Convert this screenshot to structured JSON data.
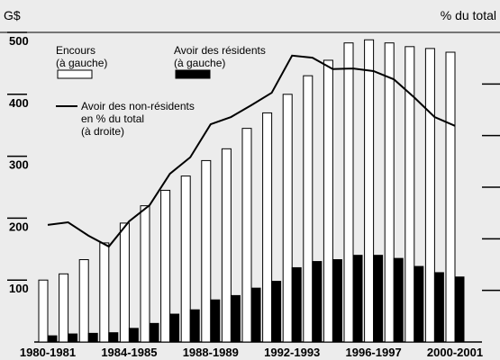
{
  "chart_data": {
    "type": "bar",
    "y_label": "G$",
    "y2_label": "% du total",
    "categories": [
      "1980-1981",
      null,
      null,
      null,
      "1984-1985",
      null,
      null,
      null,
      "1988-1989",
      null,
      null,
      null,
      "1992-1993",
      null,
      null,
      null,
      "1996-1997",
      null,
      null,
      null,
      "2000-2001"
    ],
    "series": [
      {
        "name": [
          "Encours",
          "(à gauche)"
        ],
        "color": "#ffffff",
        "values": [
          100,
          110,
          133,
          160,
          192,
          220,
          245,
          268,
          293,
          312,
          345,
          370,
          400,
          430,
          455,
          483,
          488,
          483,
          477,
          474,
          468
        ]
      },
      {
        "name": [
          "Avoir des résidents",
          "(à gauche)"
        ],
        "color": "#000000",
        "values": [
          10,
          13,
          14,
          15,
          22,
          30,
          45,
          52,
          68,
          75,
          87,
          98,
          120,
          130,
          133,
          140,
          140,
          135,
          122,
          112,
          105
        ]
      },
      {
        "name": [
          "Avoir des non-résidents",
          "en % du total",
          "(à droite)"
        ],
        "color": "#000000",
        "type": "line",
        "axis": "y2",
        "values": [
          22.7,
          23.2,
          20.6,
          18.5,
          23.4,
          26.5,
          32.6,
          35.8,
          42.2,
          43.6,
          45.9,
          48.3,
          55.5,
          55.1,
          52.9,
          53.0,
          52.5,
          50.9,
          47.4,
          43.6,
          41.9
        ]
      }
    ],
    "ylim": [
      0,
      500
    ],
    "yticks": [
      100,
      200,
      300,
      400,
      500
    ],
    "y2lim": [
      0,
      60
    ],
    "y2ticks": [
      10,
      20,
      30,
      40,
      50
    ]
  }
}
